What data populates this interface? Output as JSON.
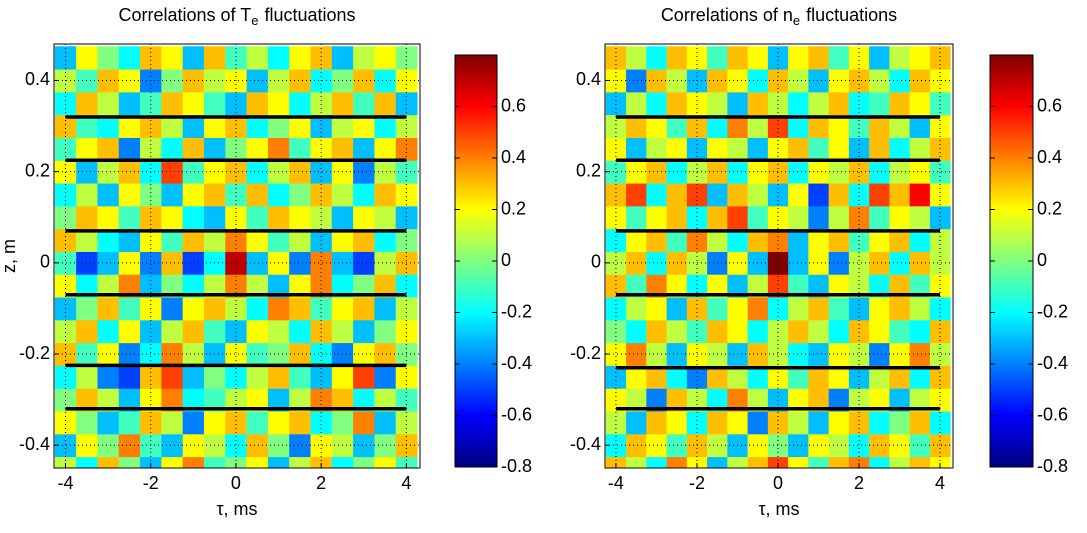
{
  "chart_data": [
    {
      "type": "heatmap",
      "title": [
        "Correlations of T",
        "e",
        "fluctuations"
      ],
      "xlabel": "τ, ms",
      "ylabel": "z, m",
      "colormap": "jet",
      "grid": true,
      "xlim": [
        -4.27,
        4.32
      ],
      "ylim": [
        -0.45,
        0.48
      ],
      "xticks": [
        -4,
        -2,
        0,
        2,
        4
      ],
      "yticks": [
        -0.4,
        -0.2,
        0,
        0.2,
        0.4
      ],
      "clim": [
        -0.8,
        0.8
      ],
      "cticks": [
        -0.8,
        -0.6,
        -0.4,
        -0.2,
        0,
        0.2,
        0.4,
        0.6
      ],
      "x": [
        -4,
        -3.5,
        -3,
        -2.5,
        -2,
        -1.5,
        -1,
        -0.5,
        0,
        0.5,
        1,
        1.5,
        2,
        2.5,
        3,
        3.5,
        4
      ],
      "y": [
        -0.45,
        -0.4,
        -0.35,
        -0.3,
        -0.25,
        -0.2,
        -0.15,
        -0.1,
        -0.05,
        0,
        0.05,
        0.1,
        0.15,
        0.2,
        0.25,
        0.3,
        0.35,
        0.4,
        0.45
      ],
      "z": [
        [
          0.1,
          -0.2,
          0.3,
          0,
          -0.3,
          0.2,
          0.4,
          -0.1,
          0,
          0.2,
          -0.3,
          0.1,
          0.3,
          -0.2,
          0,
          0.2,
          -0.1
        ],
        [
          -0.3,
          0.2,
          0,
          0.4,
          -0.1,
          -0.3,
          0.2,
          0.1,
          -0.2,
          0.3,
          0,
          -0.4,
          0.2,
          0.1,
          -0.3,
          0,
          0.3
        ],
        [
          0.2,
          0,
          -0.3,
          -0.1,
          0.3,
          0.1,
          -0.4,
          0.2,
          0.3,
          -0.1,
          0.2,
          0.3,
          -0.2,
          0,
          0.4,
          -0.3,
          0.1
        ],
        [
          0,
          0.3,
          0.1,
          -0.3,
          0.2,
          0.4,
          -0.2,
          -0.1,
          0.1,
          0.2,
          -0.3,
          0.1,
          0.4,
          0.3,
          -0.2,
          0.1,
          -0.1
        ],
        [
          -0.2,
          0.1,
          -0.4,
          -0.5,
          0.3,
          0.5,
          -0.3,
          0,
          -0.2,
          0.1,
          0.3,
          -0.1,
          -0.3,
          0.2,
          0.5,
          -0.4,
          0.2
        ],
        [
          0.3,
          -0.1,
          0.2,
          -0.4,
          -0.2,
          0.4,
          0.1,
          -0.3,
          0.2,
          -0.1,
          0,
          0.3,
          -0.2,
          -0.4,
          0.2,
          0.3,
          0
        ],
        [
          0.1,
          0.3,
          -0.2,
          0.2,
          -0.3,
          0.1,
          0.3,
          -0.1,
          -0.3,
          0.2,
          0.1,
          -0.2,
          0.3,
          0.1,
          -0.3,
          0,
          0.2
        ],
        [
          -0.3,
          0,
          0.3,
          -0.1,
          0.2,
          -0.4,
          0.2,
          0.3,
          0.1,
          -0.2,
          0.4,
          0.3,
          -0.1,
          0.2,
          0.3,
          -0.3,
          0.1
        ],
        [
          0.2,
          -0.2,
          0.1,
          0.4,
          -0.3,
          0,
          -0.2,
          0.1,
          0.4,
          0.1,
          -0.3,
          0.2,
          0.4,
          -0.2,
          0,
          0.3,
          -0.2
        ],
        [
          -0.1,
          -0.5,
          -0.3,
          0.2,
          -0.4,
          0.3,
          -0.5,
          -0.2,
          0.7,
          -0.3,
          0.2,
          -0.4,
          0.4,
          -0.3,
          -0.5,
          0.1,
          0.3
        ],
        [
          0.3,
          0.1,
          -0.2,
          -0.3,
          0.2,
          -0.1,
          0.3,
          0.1,
          0.4,
          0.2,
          -0.1,
          0.1,
          -0.3,
          0.2,
          0.3,
          -0.2,
          0
        ],
        [
          0,
          0.3,
          0.2,
          -0.1,
          0.3,
          0.2,
          -0.2,
          -0.3,
          0.2,
          -0.1,
          0.3,
          0.2,
          0.1,
          -0.3,
          0.2,
          0.1,
          -0.3
        ],
        [
          -0.2,
          0.1,
          -0.3,
          0.2,
          0,
          -0.3,
          0.2,
          0.3,
          -0.1,
          0.3,
          -0.2,
          0,
          0.3,
          0.1,
          -0.2,
          0.3,
          0.2
        ],
        [
          0.2,
          -0.3,
          0.1,
          0.3,
          -0.2,
          0.5,
          -0.1,
          0.2,
          0.3,
          -0.2,
          0.1,
          0.3,
          -0.3,
          0.2,
          -0.4,
          0.1,
          -0.1
        ],
        [
          -0.1,
          0.2,
          0.3,
          -0.4,
          0.1,
          -0.2,
          0.3,
          -0.3,
          0,
          0.2,
          0.4,
          -0.1,
          0.2,
          0.3,
          -0.3,
          0.2,
          0.4
        ],
        [
          0.3,
          -0.1,
          -0.2,
          0.2,
          0.3,
          0.1,
          -0.3,
          0.2,
          0.3,
          -0.2,
          0,
          0.2,
          -0.3,
          0.1,
          0.2,
          -0.2,
          0.1
        ],
        [
          -0.2,
          0.3,
          0.1,
          -0.3,
          -0.1,
          0.3,
          0.2,
          -0.1,
          -0.3,
          0.3,
          0.2,
          -0.2,
          0.1,
          0.3,
          -0.1,
          0.3,
          -0.3
        ],
        [
          0.1,
          -0.1,
          0.3,
          0.2,
          -0.4,
          0,
          0.3,
          0.1,
          0.2,
          -0.3,
          0.1,
          0.3,
          -0.2,
          0,
          0.3,
          -0.2,
          0.2
        ],
        [
          -0.3,
          0.2,
          0,
          -0.2,
          0.3,
          0.2,
          -0.3,
          0.3,
          -0.1,
          0.1,
          -0.2,
          0.2,
          0.3,
          -0.3,
          0.1,
          0.2,
          0
        ]
      ],
      "line_color": "#000000",
      "lines": [
        {
          "x": [
            -4,
            4
          ],
          "y": [
            0.32,
            0.32
          ]
        },
        {
          "x": [
            -4,
            4
          ],
          "y": [
            0.225,
            0.225
          ]
        },
        {
          "x": [
            -4,
            4
          ],
          "y": [
            0.07,
            0.07
          ]
        },
        {
          "x": [
            -4,
            4
          ],
          "y": [
            -0.07,
            -0.07
          ]
        },
        {
          "x": [
            -4,
            4
          ],
          "y": [
            -0.225,
            -0.225
          ]
        },
        {
          "x": [
            -4,
            4
          ],
          "y": [
            -0.32,
            -0.32
          ]
        }
      ]
    },
    {
      "type": "heatmap",
      "title": [
        "Correlations of n",
        "e",
        "fluctuations"
      ],
      "xlabel": "τ, ms",
      "colormap": "jet",
      "grid": true,
      "xlim": [
        -4.27,
        4.32
      ],
      "ylim": [
        -0.45,
        0.48
      ],
      "xticks": [
        -4,
        -2,
        0,
        2,
        4
      ],
      "yticks": [
        -0.4,
        -0.2,
        0,
        0.2,
        0.4
      ],
      "clim": [
        -0.8,
        0.8
      ],
      "cticks": [
        -0.8,
        -0.6,
        -0.4,
        -0.2,
        0,
        0.2,
        0.4,
        0.6
      ],
      "x": [
        -4,
        -3.5,
        -3,
        -2.5,
        -2,
        -1.5,
        -1,
        -0.5,
        0,
        0.5,
        1,
        1.5,
        2,
        2.5,
        3,
        3.5,
        4
      ],
      "y": [
        -0.45,
        -0.4,
        -0.35,
        -0.3,
        -0.25,
        -0.2,
        -0.15,
        -0.1,
        -0.05,
        0,
        0.05,
        0.1,
        0.15,
        0.2,
        0.25,
        0.3,
        0.35,
        0.4,
        0.45
      ],
      "z": [
        [
          0.3,
          0.1,
          -0.2,
          0.4,
          0.2,
          -0.3,
          0.1,
          0.3,
          0.5,
          0.2,
          -0.1,
          0.3,
          0.4,
          -0.2,
          0.1,
          0.3,
          0.2
        ],
        [
          -0.2,
          0.3,
          0.2,
          -0.1,
          0.3,
          0.1,
          -0.3,
          0.2,
          0,
          -0.3,
          0.2,
          0.1,
          -0.2,
          0.3,
          0.2,
          -0.1,
          0.3
        ],
        [
          0.1,
          -0.3,
          0.3,
          0.2,
          -0.2,
          0.3,
          0.2,
          -0.4,
          0.3,
          0.1,
          -0.3,
          0.2,
          0.3,
          -0.2,
          0,
          0.3,
          -0.2
        ],
        [
          0.2,
          0.1,
          -0.4,
          0.3,
          0.1,
          -0.2,
          0.4,
          0.1,
          -0.3,
          0.2,
          0.3,
          -0.4,
          0.1,
          0.2,
          -0.3,
          0.1,
          0.2
        ],
        [
          -0.3,
          0.2,
          0.3,
          -0.2,
          -0.4,
          0.3,
          0.1,
          -0.2,
          0.2,
          -0.1,
          0.3,
          0.2,
          -0.3,
          0.1,
          0.3,
          -0.2,
          0.3
        ],
        [
          0.2,
          0.4,
          0.1,
          -0.3,
          0.2,
          0.1,
          -0.3,
          0.3,
          0.1,
          -0.2,
          -0.3,
          0.2,
          0.1,
          -0.4,
          0.2,
          0.4,
          0.1
        ],
        [
          0,
          -0.2,
          0.3,
          0.1,
          -0.1,
          0.3,
          0.2,
          -0.2,
          0.1,
          0.3,
          0.1,
          -0.2,
          0.3,
          0.2,
          -0.1,
          -0.2,
          0.3
        ],
        [
          -0.2,
          0.1,
          0.2,
          -0.3,
          0.3,
          -0.1,
          0.2,
          0.4,
          -0.2,
          0.1,
          0.3,
          -0.1,
          -0.3,
          0.2,
          0.3,
          0.1,
          -0.2
        ],
        [
          0.3,
          -0.1,
          0.4,
          0.2,
          -0.2,
          0.2,
          -0.3,
          0.1,
          0.5,
          -0.1,
          -0.3,
          0.2,
          0.1,
          -0.2,
          0.3,
          -0.1,
          0.2
        ],
        [
          0.1,
          0.3,
          -0.2,
          0.3,
          0.1,
          -0.4,
          0.2,
          -0.3,
          0.8,
          -0.3,
          0.2,
          -0.4,
          0.1,
          0.3,
          -0.2,
          0.3,
          0.1
        ],
        [
          -0.2,
          0.2,
          0.3,
          -0.1,
          0.4,
          0.1,
          -0.2,
          0.3,
          0.4,
          -0.3,
          0.2,
          0.3,
          -0.1,
          0.2,
          0.3,
          -0.2,
          0.1
        ],
        [
          0.2,
          -0.1,
          0.2,
          0.3,
          -0.2,
          0.3,
          0.5,
          -0.1,
          0.2,
          0.1,
          -0.4,
          0.1,
          0.4,
          -0.1,
          0.2,
          0.1,
          -0.3
        ],
        [
          0.3,
          0.5,
          -0.2,
          0.3,
          0.5,
          -0.3,
          0.3,
          0.1,
          -0.3,
          0.2,
          -0.5,
          0.3,
          -0.2,
          0.5,
          0.3,
          0.6,
          0.2
        ],
        [
          -0.1,
          0.2,
          0.3,
          -0.2,
          0.1,
          0.3,
          -0.2,
          0.2,
          0.3,
          -0.2,
          0.2,
          0.1,
          0.3,
          -0.2,
          0.1,
          0.2,
          -0.1
        ],
        [
          0.2,
          -0.3,
          0.1,
          0.2,
          -0.3,
          0.2,
          0.1,
          -0.3,
          0.2,
          0.3,
          -0.1,
          0.2,
          -0.3,
          0.3,
          -0.2,
          0.1,
          0.3
        ],
        [
          0.1,
          0.3,
          0.2,
          -0.1,
          0.3,
          -0.2,
          0.4,
          0.1,
          0.5,
          -0.2,
          0.3,
          0.2,
          -0.1,
          0.3,
          0.1,
          -0.3,
          0.2
        ],
        [
          -0.3,
          0.1,
          -0.2,
          0.3,
          0.2,
          0.1,
          -0.3,
          0.3,
          0.1,
          -0.2,
          0.1,
          0.3,
          -0.2,
          -0.1,
          0.3,
          0.2,
          -0.1
        ],
        [
          0.2,
          -0.4,
          0.3,
          0.1,
          -0.3,
          0.3,
          0.2,
          -0.2,
          0.3,
          0.1,
          -0.3,
          0.2,
          0.3,
          0.1,
          -0.2,
          0.3,
          0.2
        ],
        [
          0.3,
          0.1,
          -0.2,
          0.3,
          0.2,
          -0.1,
          0.3,
          0.2,
          -0.3,
          0.2,
          0.3,
          -0.1,
          0.2,
          -0.3,
          0.1,
          0.2,
          0.3
        ]
      ],
      "line_color": "#000000",
      "lines": [
        {
          "x": [
            -4,
            4
          ],
          "y": [
            0.32,
            0.32
          ]
        },
        {
          "x": [
            -4,
            4
          ],
          "y": [
            0.225,
            0.225
          ]
        },
        {
          "x": [
            -4,
            4
          ],
          "y": [
            0.07,
            0.07
          ]
        },
        {
          "x": [
            -4,
            4
          ],
          "y": [
            -0.07,
            -0.07
          ]
        },
        {
          "x": [
            -4,
            4
          ],
          "y": [
            -0.23,
            -0.23
          ]
        },
        {
          "x": [
            -4,
            4
          ],
          "y": [
            -0.32,
            -0.32
          ]
        }
      ]
    }
  ]
}
